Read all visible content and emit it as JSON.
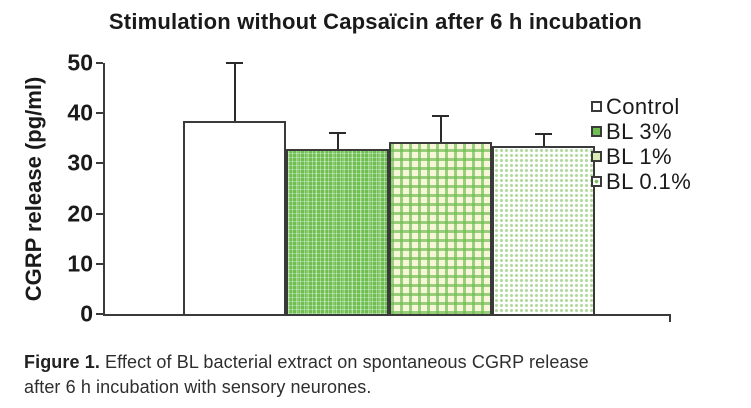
{
  "chart_data": {
    "type": "bar",
    "title": "Stimulation without Capsaïcin after 6 h incubation",
    "xlabel": "",
    "ylabel": "CGRP release (pg/ml)",
    "ylim": [
      0,
      50
    ],
    "yticks": [
      0,
      10,
      20,
      30,
      40,
      50
    ],
    "grid": false,
    "legend_position": "right",
    "categories": [
      "Control",
      "BL 3%",
      "BL 1%",
      "BL 0.1%"
    ],
    "series": [
      {
        "name": "Control",
        "value": 38.4,
        "error_plus": 11.8,
        "pattern": "white",
        "swatch": "white"
      },
      {
        "name": "BL 3%",
        "value": 32.8,
        "error_plus": 3.4,
        "pattern": "green-plaid",
        "swatch": "green"
      },
      {
        "name": "BL 1%",
        "value": 34.3,
        "error_plus": 5.3,
        "pattern": "gingham",
        "swatch": "pale"
      },
      {
        "name": "BL 0.1%",
        "value": 33.5,
        "error_plus": 2.6,
        "pattern": "dots",
        "swatch": "dot"
      }
    ],
    "colors": {
      "bar_green": "#6fbe52",
      "pale_green": "#dcebb5",
      "cream_background": "#f8f6d8",
      "axis": "#3a3a3a",
      "text": "#1a1a1a"
    }
  },
  "caption": {
    "label": "Figure 1.",
    "line1": "Effect of BL bacterial extract on spontaneous CGRP release",
    "line2": "after 6 h incubation with sensory neurones."
  }
}
